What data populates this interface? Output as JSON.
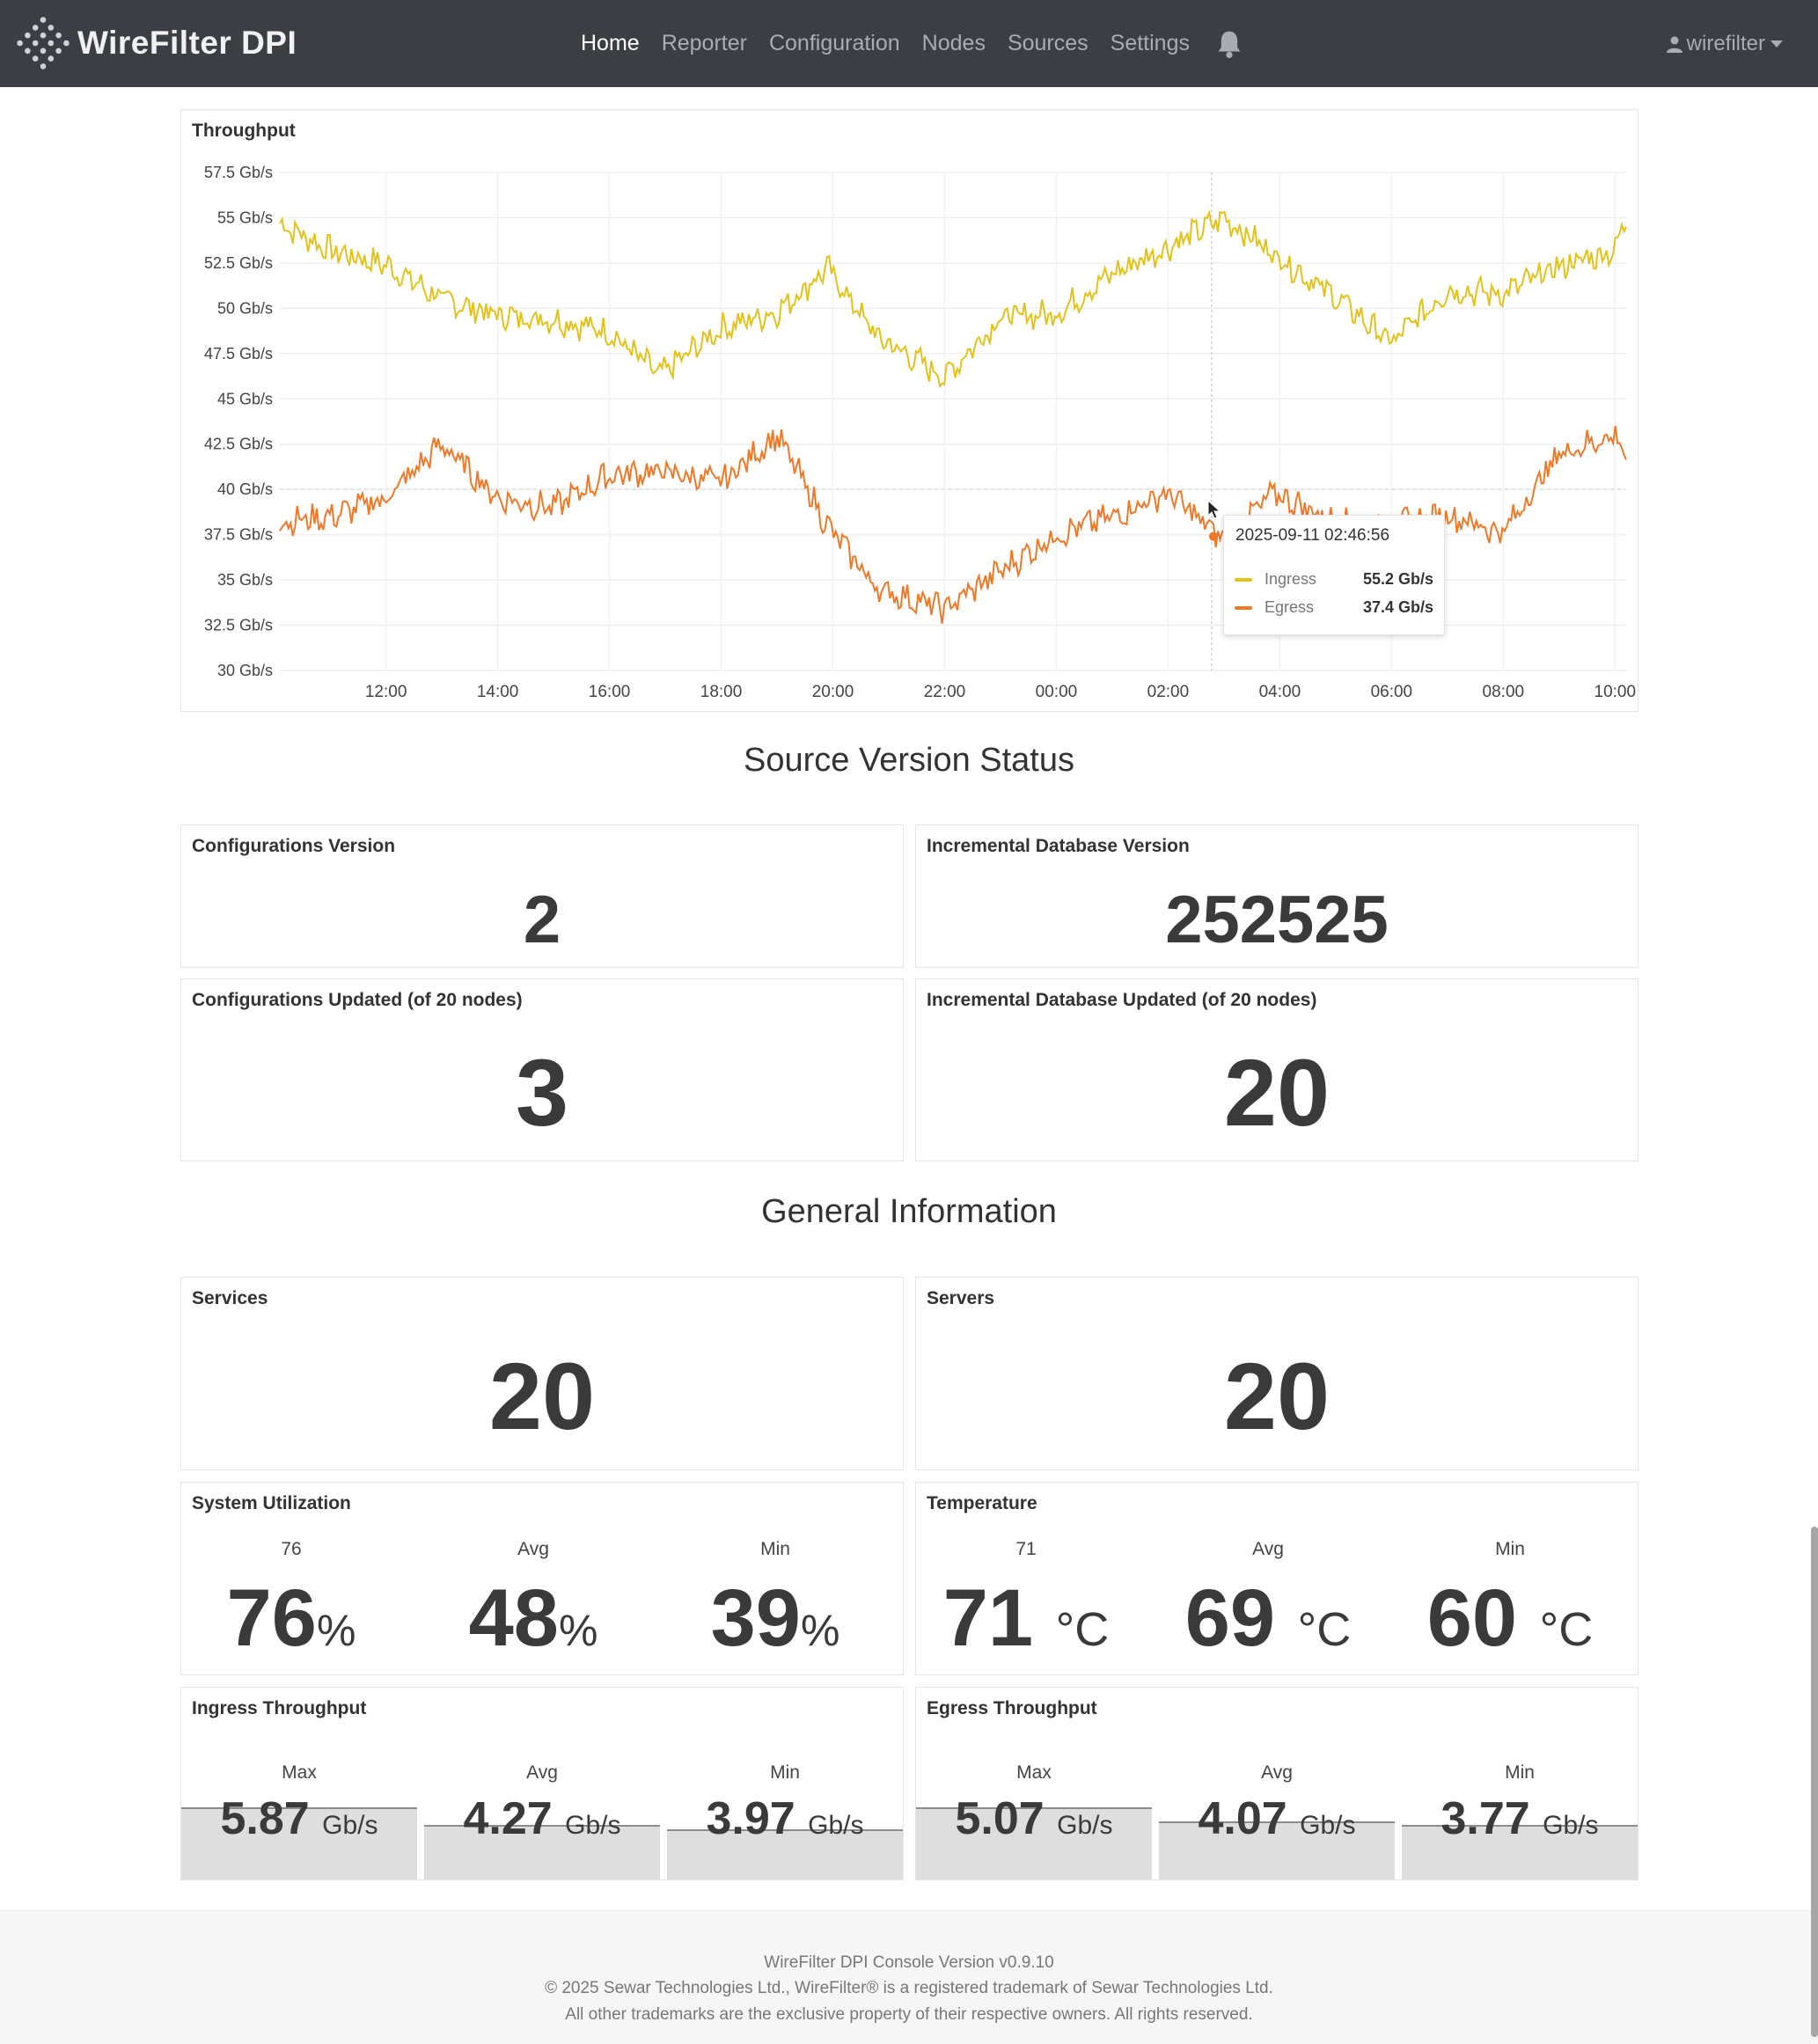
{
  "brand": {
    "name": "WireFilter DPI",
    "logo_icon": "diamond-dots-logo-icon"
  },
  "nav": {
    "items": [
      {
        "label": "Home",
        "active": true
      },
      {
        "label": "Reporter",
        "active": false
      },
      {
        "label": "Configuration",
        "active": false
      },
      {
        "label": "Nodes",
        "active": false
      },
      {
        "label": "Sources",
        "active": false
      },
      {
        "label": "Settings",
        "active": false
      }
    ],
    "bell_icon": "bell-icon",
    "user": "wirefilter"
  },
  "throughput": {
    "title": "Throughput",
    "tooltip": {
      "time": "2025-09-11 02:46:56",
      "rows": [
        {
          "name": "Ingress",
          "value": "55.2 Gb/s",
          "color": "#e3c21a"
        },
        {
          "name": "Egress",
          "value": "37.4 Gb/s",
          "color": "#f07826"
        }
      ]
    }
  },
  "chart_data": {
    "type": "line",
    "title": "Throughput",
    "x_ticks": [
      "12:00",
      "14:00",
      "16:00",
      "18:00",
      "20:00",
      "22:00",
      "00:00",
      "02:00",
      "04:00",
      "06:00",
      "08:00",
      "10:00"
    ],
    "y_ticks": [
      "30 Gb/s",
      "32.5 Gb/s",
      "35 Gb/s",
      "37.5 Gb/s",
      "40 Gb/s",
      "42.5 Gb/s",
      "45 Gb/s",
      "47.5 Gb/s",
      "50 Gb/s",
      "52.5 Gb/s",
      "55 Gb/s",
      "57.5 Gb/s"
    ],
    "ylim": [
      30,
      57.5
    ],
    "unit": "Gb/s",
    "grid": true,
    "x_hours": [
      10.1,
      11,
      12,
      13,
      14,
      15,
      16,
      16.9,
      18,
      19,
      19.9,
      20.8,
      22,
      23,
      24,
      25,
      26,
      27,
      27.9,
      29,
      30,
      31,
      32,
      33,
      34,
      34.2
    ],
    "series": [
      {
        "name": "Ingress",
        "color": "#e3c21a",
        "values": [
          54.7,
          53.2,
          52.4,
          50.5,
          49.6,
          49.4,
          48.7,
          46.3,
          48.9,
          49.8,
          52.2,
          48.4,
          46.2,
          49.5,
          49.7,
          51.9,
          53.4,
          55.0,
          53.0,
          50.6,
          48.1,
          51.0,
          50.8,
          52.3,
          53.2,
          55.0
        ]
      },
      {
        "name": "Egress",
        "color": "#f07826",
        "values": [
          38.2,
          38.5,
          39.5,
          42.5,
          39.5,
          39.0,
          40.8,
          41.0,
          40.4,
          43.0,
          38.0,
          34.5,
          33.4,
          35.5,
          37.5,
          38.5,
          39.8,
          37.2,
          39.8,
          38.2,
          38.0,
          38.6,
          37.6,
          42.0,
          43.0,
          42.0
        ]
      }
    ]
  },
  "source_version": {
    "title": "Source Version Status",
    "configurations_version": {
      "label": "Configurations Version",
      "value": "2"
    },
    "incremental_db_version": {
      "label": "Incremental Database Version",
      "value": "252525"
    },
    "configurations_updated": {
      "label": "Configurations Updated (of 20 nodes)",
      "value": "3"
    },
    "incremental_db_updated": {
      "label": "Incremental Database Updated (of 20 nodes)",
      "value": "20"
    }
  },
  "general": {
    "title": "General Information",
    "services": {
      "label": "Services",
      "value": "20"
    },
    "servers": {
      "label": "Servers",
      "value": "20"
    },
    "system_utilization": {
      "label": "System Utilization",
      "items": [
        {
          "label": "76",
          "value": "76",
          "unit": "%"
        },
        {
          "label": "Avg",
          "value": "48",
          "unit": "%"
        },
        {
          "label": "Min",
          "value": "39",
          "unit": "%"
        }
      ]
    },
    "temperature": {
      "label": "Temperature",
      "items": [
        {
          "label": "71",
          "value": "71",
          "unit": "°C"
        },
        {
          "label": "Avg",
          "value": "69",
          "unit": "°C"
        },
        {
          "label": "Min",
          "value": "60",
          "unit": "°C"
        }
      ]
    },
    "ingress_throughput": {
      "label": "Ingress Throughput",
      "items": [
        {
          "label": "Max",
          "value": "5.87",
          "unit": "Gb/s"
        },
        {
          "label": "Avg",
          "value": "4.27",
          "unit": "Gb/s"
        },
        {
          "label": "Min",
          "value": "3.97",
          "unit": "Gb/s"
        }
      ]
    },
    "egress_throughput": {
      "label": "Egress Throughput",
      "items": [
        {
          "label": "Max",
          "value": "5.07",
          "unit": "Gb/s"
        },
        {
          "label": "Avg",
          "value": "4.07",
          "unit": "Gb/s"
        },
        {
          "label": "Min",
          "value": "3.77",
          "unit": "Gb/s"
        }
      ]
    }
  },
  "footer": {
    "line1": "WireFilter DPI Console Version v0.9.10",
    "line2": "© 2025 Sewar Technologies Ltd., WireFilter® is a registered trademark of Sewar Technologies Ltd.",
    "line3": "All other trademarks are the exclusive property of their respective owners. All rights reserved."
  }
}
